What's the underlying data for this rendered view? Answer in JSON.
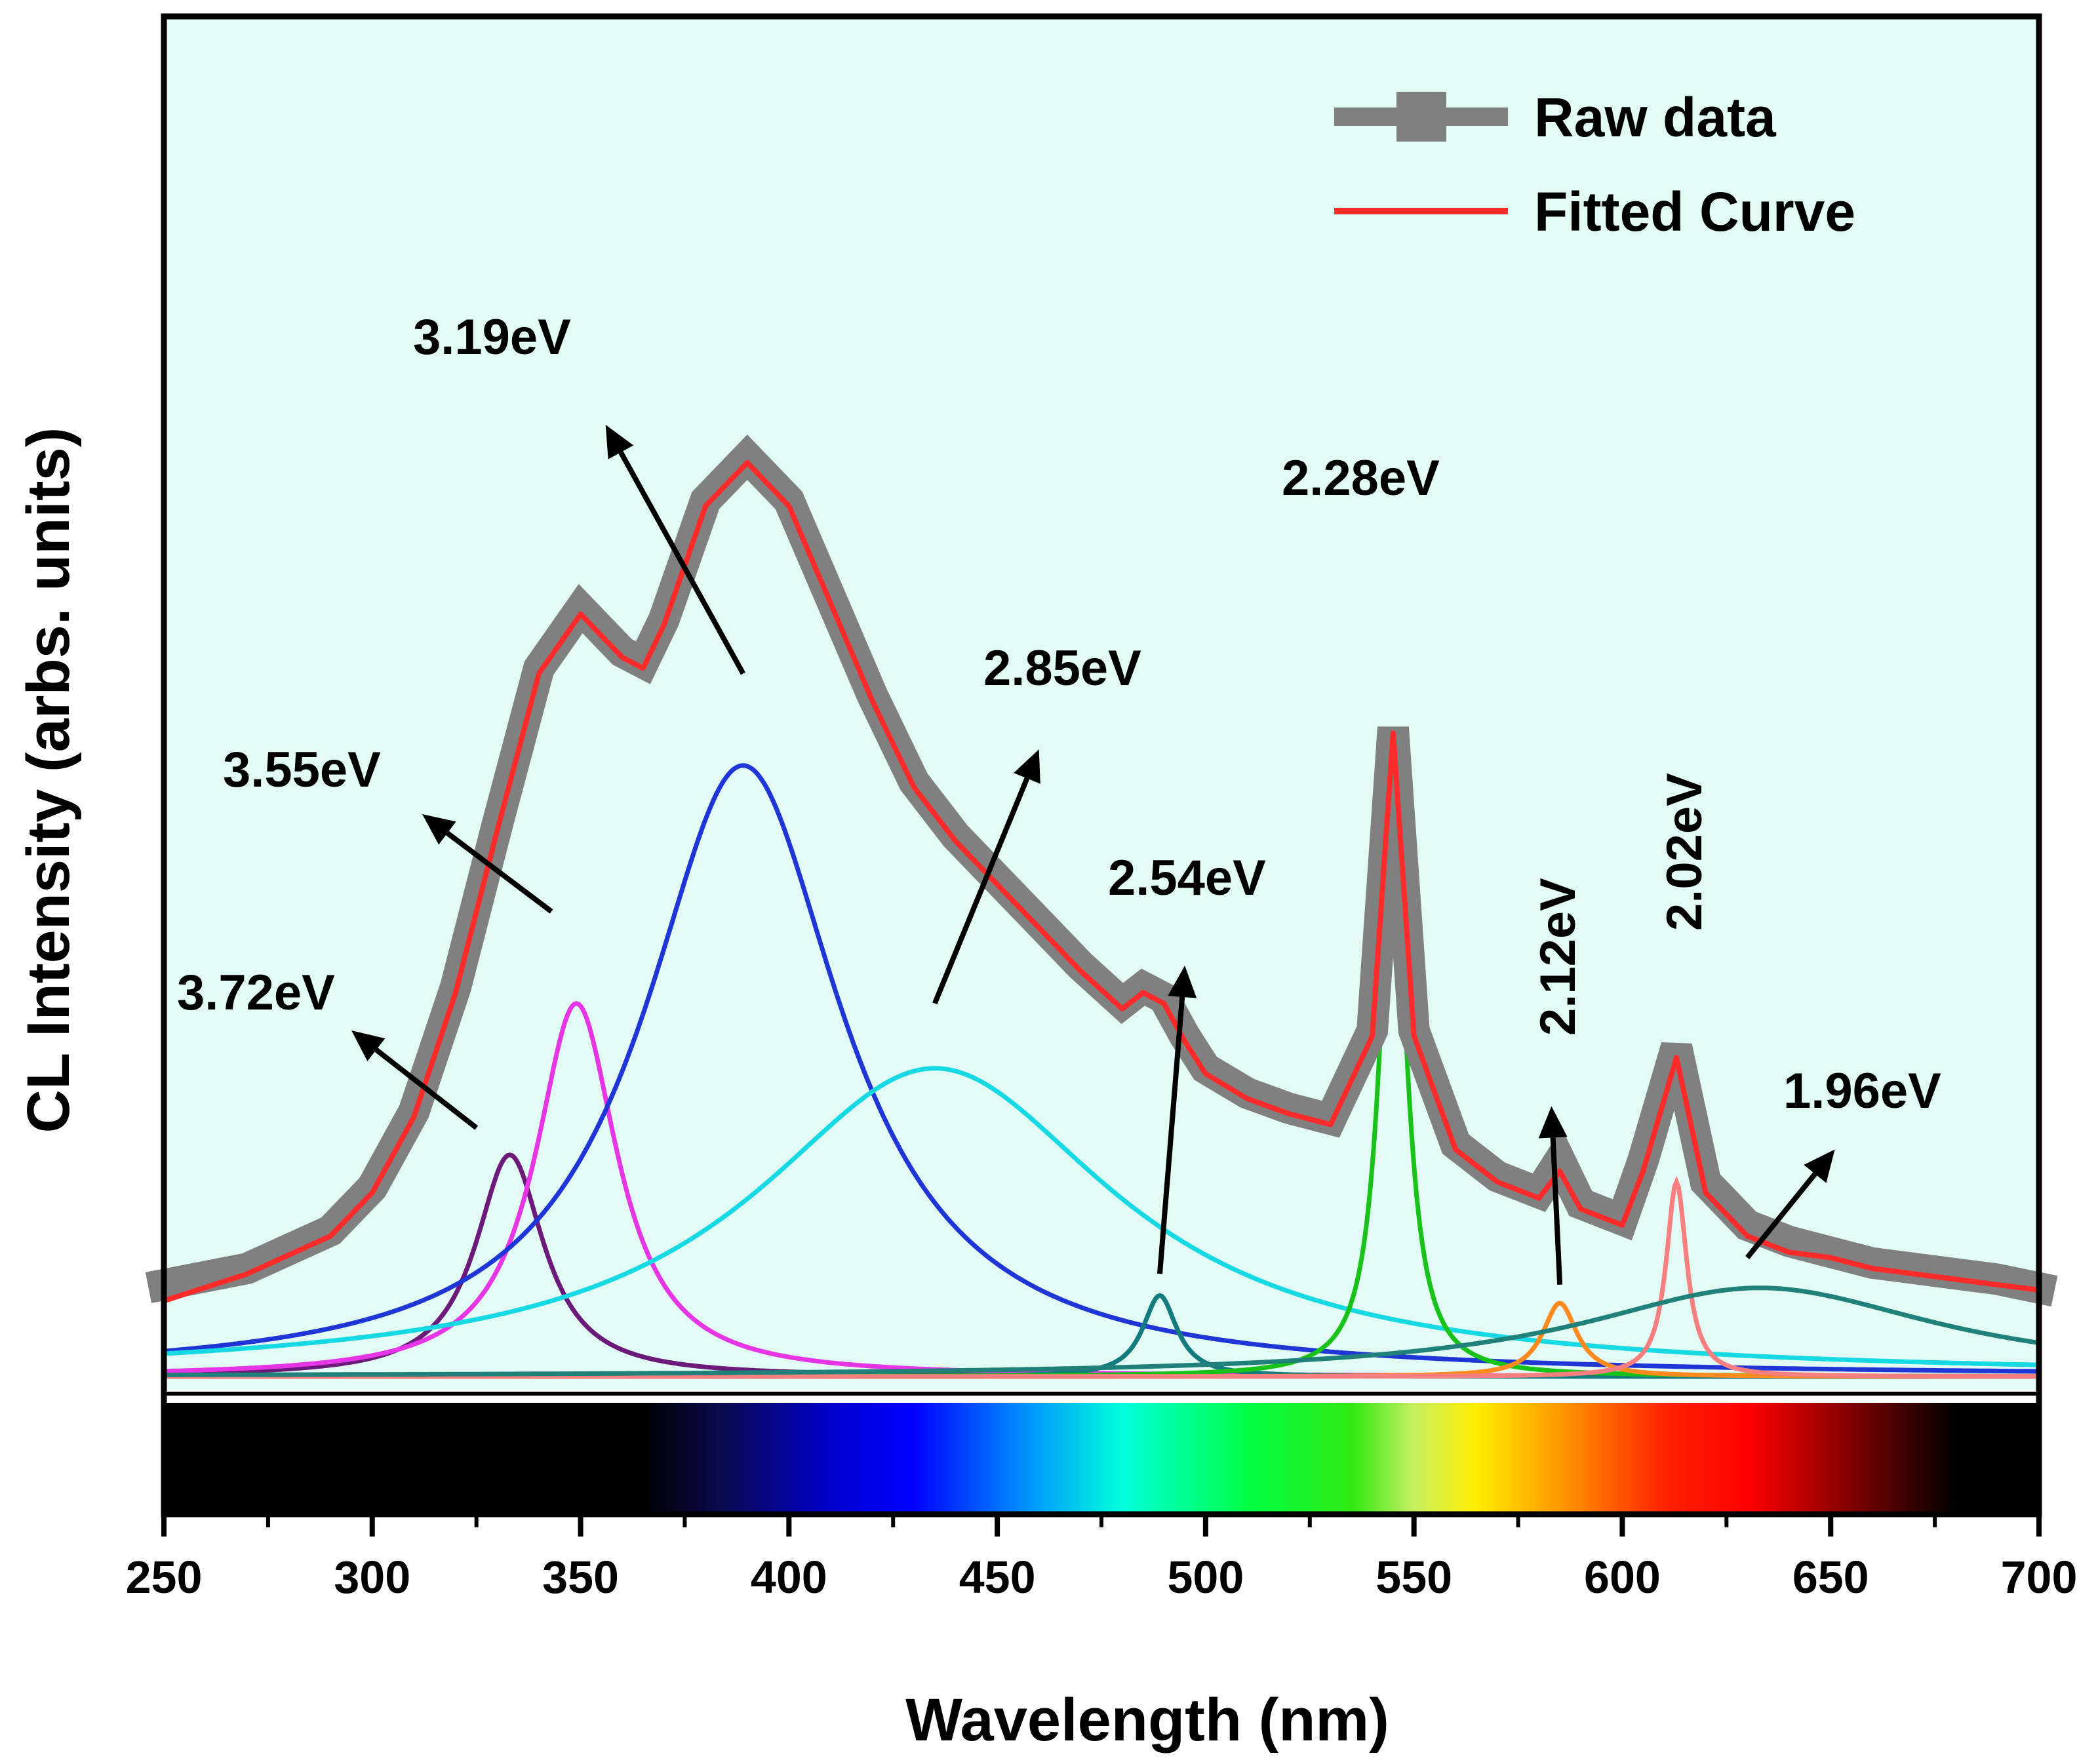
{
  "chart_data": {
    "type": "line",
    "title": "",
    "xlabel": "Wavelength (nm)",
    "ylabel": "CL Intensity (arbs. units)",
    "xlim": [
      250,
      700
    ],
    "ylim": [
      0,
      1.0
    ],
    "xticks": [
      250,
      300,
      350,
      400,
      450,
      500,
      550,
      600,
      650,
      700
    ],
    "yticks_shown": false,
    "legend": {
      "position": "top-right",
      "entries": [
        {
          "name": "Raw data",
          "color": "#808080",
          "marker": "square"
        },
        {
          "name": "Fitted Curve",
          "color": "#ff2a2a"
        }
      ]
    },
    "raw_data": {
      "name": "Raw data",
      "color": "#808080",
      "x": [
        250,
        270,
        290,
        300,
        310,
        320,
        330,
        340,
        350,
        360,
        365,
        370,
        380,
        390,
        400,
        410,
        420,
        430,
        440,
        450,
        460,
        470,
        480,
        485,
        490,
        495,
        500,
        510,
        520,
        530,
        540,
        545,
        550,
        560,
        570,
        580,
        585,
        590,
        600,
        605,
        613,
        620,
        630,
        640,
        650,
        660,
        670,
        680,
        690,
        700
      ],
      "y": [
        0.085,
        0.1,
        0.135,
        0.175,
        0.245,
        0.36,
        0.51,
        0.655,
        0.71,
        0.67,
        0.66,
        0.7,
        0.81,
        0.85,
        0.81,
        0.72,
        0.63,
        0.55,
        0.5,
        0.46,
        0.42,
        0.38,
        0.345,
        0.36,
        0.35,
        0.315,
        0.285,
        0.262,
        0.248,
        0.238,
        0.32,
        0.6,
        0.32,
        0.215,
        0.185,
        0.17,
        0.2,
        0.16,
        0.145,
        0.2,
        0.305,
        0.18,
        0.14,
        0.125,
        0.115,
        0.105,
        0.1,
        0.095,
        0.09,
        0.082
      ]
    },
    "fitted_curve": {
      "name": "Fitted Curve",
      "color": "#ff2a2a",
      "x": [
        250,
        270,
        290,
        300,
        310,
        320,
        330,
        340,
        350,
        360,
        365,
        370,
        380,
        390,
        400,
        410,
        420,
        430,
        440,
        450,
        460,
        470,
        480,
        485,
        490,
        495,
        500,
        510,
        520,
        530,
        540,
        545,
        550,
        560,
        570,
        580,
        585,
        590,
        600,
        605,
        613,
        620,
        630,
        640,
        650,
        660,
        670,
        680,
        690,
        700
      ],
      "y": [
        0.07,
        0.095,
        0.13,
        0.17,
        0.24,
        0.355,
        0.505,
        0.65,
        0.705,
        0.665,
        0.655,
        0.695,
        0.805,
        0.845,
        0.805,
        0.715,
        0.625,
        0.545,
        0.495,
        0.455,
        0.415,
        0.375,
        0.34,
        0.355,
        0.345,
        0.31,
        0.28,
        0.257,
        0.243,
        0.233,
        0.315,
        0.595,
        0.315,
        0.21,
        0.18,
        0.165,
        0.19,
        0.155,
        0.14,
        0.19,
        0.295,
        0.17,
        0.13,
        0.115,
        0.11,
        0.1,
        0.095,
        0.09,
        0.085,
        0.08
      ]
    },
    "series": [
      {
        "name": "3.72eV",
        "energy_ev": 3.72,
        "center_nm": 333,
        "amplitude": 0.205,
        "fwhm_nm": 20,
        "color": "#6b1a7a"
      },
      {
        "name": "3.55eV",
        "energy_ev": 3.55,
        "center_nm": 349,
        "amplitude": 0.345,
        "fwhm_nm": 24,
        "color": "#e535e5"
      },
      {
        "name": "3.19eV",
        "energy_ev": 3.19,
        "center_nm": 389,
        "amplitude": 0.565,
        "fwhm_nm": 58,
        "color": "#1f35d6"
      },
      {
        "name": "2.85eV",
        "energy_ev": 2.85,
        "center_nm": 435,
        "amplitude": 0.285,
        "fwhm_nm": 105,
        "color": "#17d9e3"
      },
      {
        "name": "2.54eV",
        "energy_ev": 2.54,
        "center_nm": 489,
        "amplitude": 0.075,
        "fwhm_nm": 10,
        "color": "#137b7d"
      },
      {
        "name": "2.28eV",
        "energy_ev": 2.28,
        "center_nm": 545,
        "amplitude": 0.5,
        "fwhm_nm": 8,
        "color": "#19c219"
      },
      {
        "name": "2.12eV",
        "energy_ev": 2.12,
        "center_nm": 585,
        "amplitude": 0.068,
        "fwhm_nm": 10,
        "color": "#ff8a1f"
      },
      {
        "name": "2.02eV",
        "energy_ev": 2.02,
        "center_nm": 613,
        "amplitude": 0.18,
        "fwhm_nm": 6,
        "color": "#f77f7f"
      },
      {
        "name": "1.96eV",
        "energy_ev": 1.96,
        "center_nm": 633,
        "amplitude": 0.082,
        "fwhm_nm": 105,
        "color": "#20807a"
      }
    ],
    "color_bar": {
      "label_range_nm": [
        250,
        700
      ],
      "stops": [
        {
          "nm": 250,
          "color": "#000000"
        },
        {
          "nm": 365,
          "color": "#000000"
        },
        {
          "nm": 385,
          "color": "#0a0a55"
        },
        {
          "nm": 410,
          "color": "#0000cc"
        },
        {
          "nm": 430,
          "color": "#0000ff"
        },
        {
          "nm": 455,
          "color": "#0088ff"
        },
        {
          "nm": 480,
          "color": "#00ffdd"
        },
        {
          "nm": 510,
          "color": "#00ff44"
        },
        {
          "nm": 535,
          "color": "#2fe812"
        },
        {
          "nm": 550,
          "color": "#c8f060"
        },
        {
          "nm": 565,
          "color": "#ffee00"
        },
        {
          "nm": 585,
          "color": "#ff9900"
        },
        {
          "nm": 610,
          "color": "#ff2200"
        },
        {
          "nm": 630,
          "color": "#ff0000"
        },
        {
          "nm": 660,
          "color": "#660000"
        },
        {
          "nm": 680,
          "color": "#000000"
        },
        {
          "nm": 700,
          "color": "#000000"
        }
      ]
    },
    "annotations": [
      {
        "text": "3.72eV",
        "arrow_from_nm": 325,
        "arrow_from_y": 0.23,
        "arrow_to_nm": 295,
        "arrow_to_y": 0.32
      },
      {
        "text": "3.55eV",
        "arrow_from_nm": 343,
        "arrow_from_y": 0.43,
        "arrow_to_nm": 312,
        "arrow_to_y": 0.52
      },
      {
        "text": "3.19eV",
        "arrow_from_nm": 389,
        "arrow_from_y": 0.65,
        "arrow_to_nm": 356,
        "arrow_to_y": 0.88
      },
      {
        "text": "2.85eV",
        "arrow_from_nm": 435,
        "arrow_from_y": 0.345,
        "arrow_to_nm": 460,
        "arrow_to_y": 0.58
      },
      {
        "text": "2.54eV",
        "arrow_from_nm": 489,
        "arrow_from_y": 0.095,
        "arrow_to_nm": 495,
        "arrow_to_y": 0.38
      },
      {
        "text": "2.28eV",
        "position_nm": 545,
        "position_y": 0.67
      },
      {
        "text": "2.12eV",
        "rotated": true,
        "arrow_from_nm": 585,
        "arrow_from_y": 0.085,
        "arrow_to_nm": 583,
        "arrow_to_y": 0.25
      },
      {
        "text": "2.02eV",
        "rotated": true
      },
      {
        "text": "1.96eV",
        "arrow_from_nm": 630,
        "arrow_from_y": 0.11,
        "arrow_to_nm": 651,
        "arrow_to_y": 0.21
      }
    ]
  }
}
